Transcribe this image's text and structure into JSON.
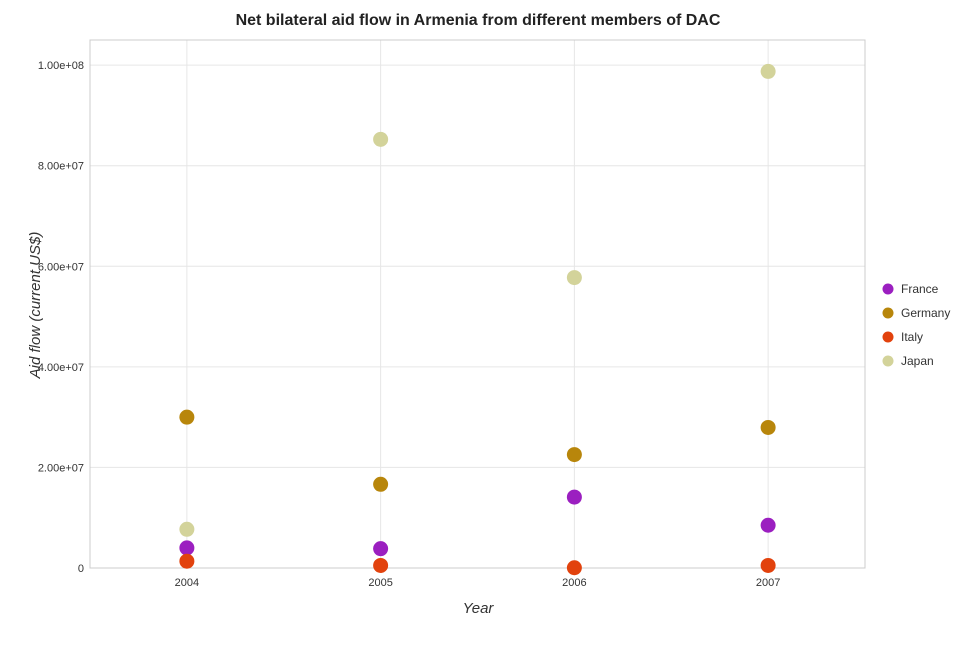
{
  "chart_data": {
    "type": "scatter",
    "title": "Net bilateral aid flow in Armenia from different members of DAC",
    "xlabel": "Year",
    "ylabel": "Aid flow (current US$)",
    "categories": [
      "2004",
      "2005",
      "2006",
      "2007"
    ],
    "ylim": [
      0,
      105000000
    ],
    "yticks": [
      0,
      20000000,
      40000000,
      60000000,
      80000000,
      100000000
    ],
    "ytick_labels": [
      "0",
      "2.00e+07",
      "4.00e+07",
      "6.00e+07",
      "8.00e+07",
      "1.00e+08"
    ],
    "grid": true,
    "legend_position": "right",
    "series": [
      {
        "name": "France",
        "color": "#9b1fc0",
        "values": [
          4000000,
          3850000,
          14100000,
          8500000
        ]
      },
      {
        "name": "Germany",
        "color": "#b8860b",
        "values": [
          30000000,
          16650000,
          22550000,
          27950000
        ]
      },
      {
        "name": "Italy",
        "color": "#e2420d",
        "values": [
          1350000,
          500000,
          50000,
          500000
        ]
      },
      {
        "name": "Japan",
        "color": "#d3d39a",
        "values": [
          7700000,
          85250000,
          57750000,
          98750000
        ]
      }
    ]
  }
}
